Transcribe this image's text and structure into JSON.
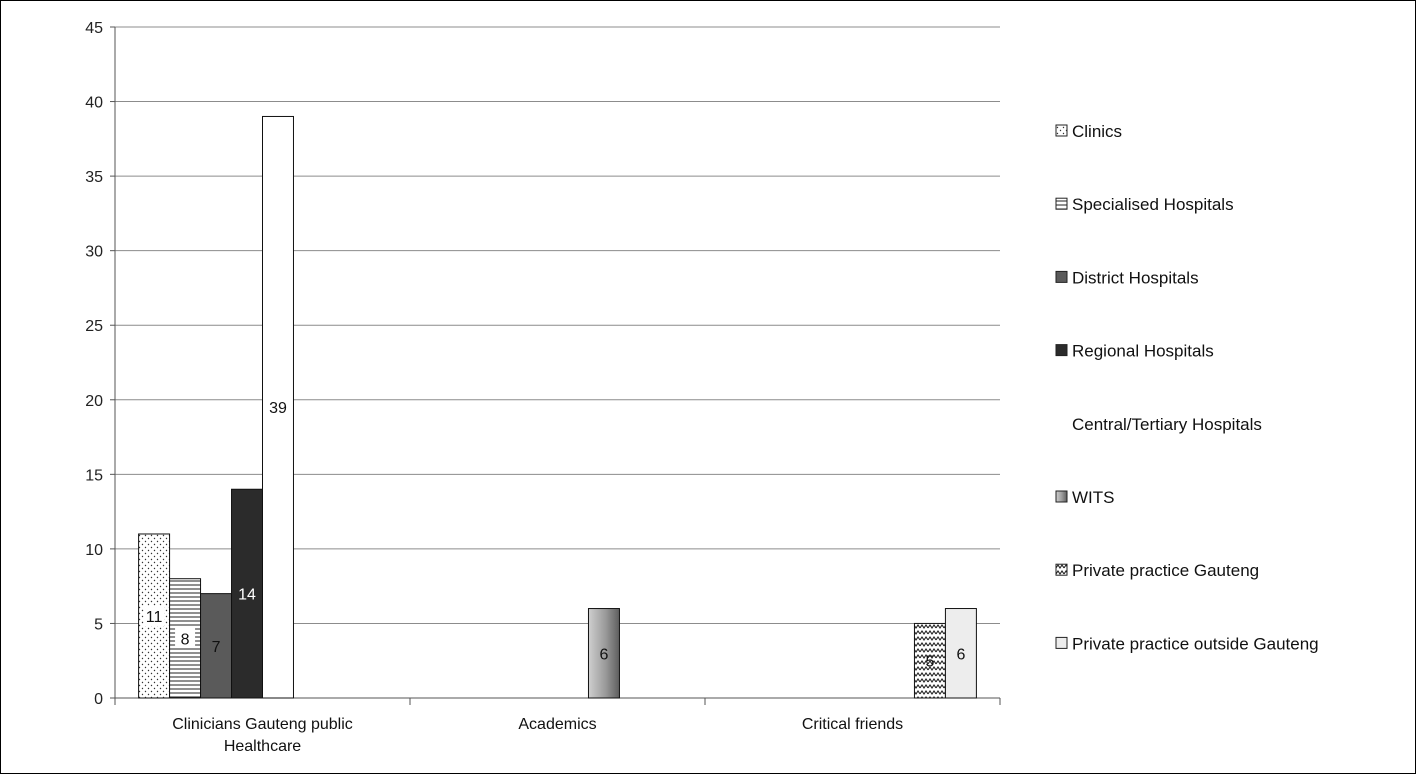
{
  "chart_data": {
    "type": "bar",
    "title": "",
    "xlabel": "",
    "ylabel": "",
    "ylim": [
      0,
      45
    ],
    "yticks": [
      0,
      5,
      10,
      15,
      20,
      25,
      30,
      35,
      40,
      45
    ],
    "grid": true,
    "legend_position": "right",
    "categories": [
      "Clinicians Gauteng public Healthcare",
      "Academics",
      "Critical friends"
    ],
    "series": [
      {
        "name": "Clinics",
        "values": [
          11,
          null,
          null
        ],
        "color": "#ffffff",
        "pattern": "dots"
      },
      {
        "name": "Specialised Hospitals",
        "values": [
          8,
          null,
          null
        ],
        "color": "#ffffff",
        "pattern": "hlines"
      },
      {
        "name": "District Hospitals",
        "values": [
          7,
          null,
          null
        ],
        "color": "#5a5a5a",
        "pattern": "solid"
      },
      {
        "name": "Regional Hospitals",
        "values": [
          14,
          null,
          null
        ],
        "color": "#2b2b2b",
        "pattern": "solid"
      },
      {
        "name": "Central/Tertiary Hospitals",
        "values": [
          39,
          null,
          null
        ],
        "color": "#ffffff",
        "pattern": "none"
      },
      {
        "name": "WITS",
        "values": [
          null,
          6,
          null
        ],
        "color": "#9a9a9a",
        "pattern": "gradient"
      },
      {
        "name": "Private practice Gauteng",
        "values": [
          null,
          null,
          5
        ],
        "color": "#ffffff",
        "pattern": "zigzag"
      },
      {
        "name": "Private practice outside Gauteng",
        "values": [
          null,
          null,
          6
        ],
        "color": "#ededed",
        "pattern": "solid"
      }
    ]
  }
}
